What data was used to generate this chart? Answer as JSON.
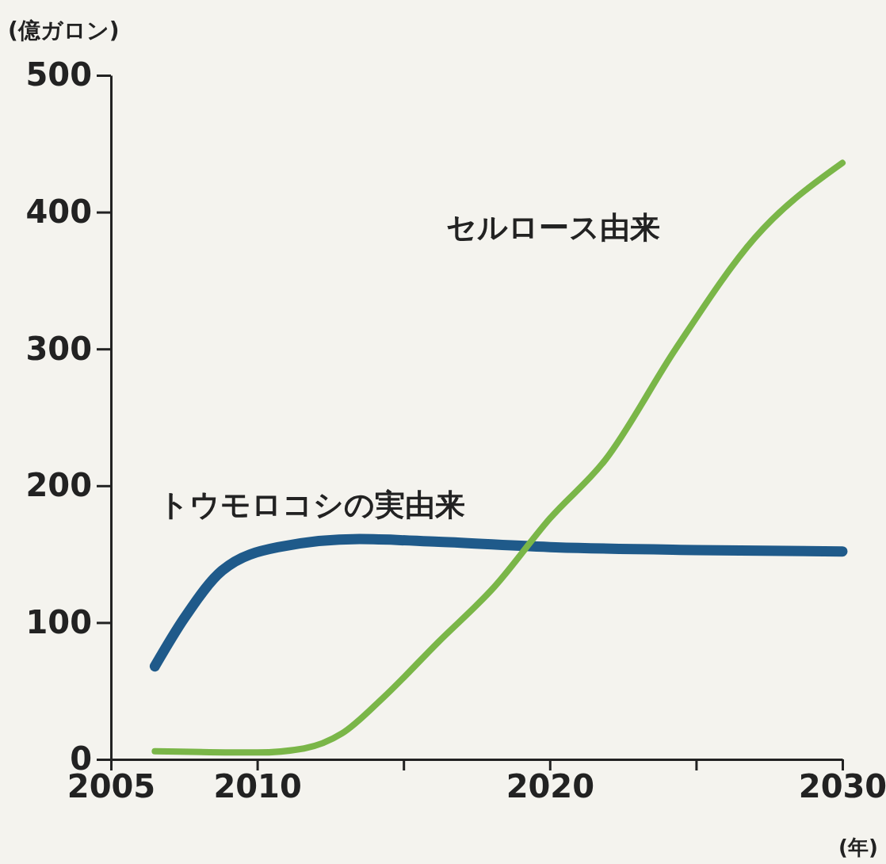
{
  "chart_data": {
    "type": "line",
    "ylabel": "(億ガロン)",
    "xlabel": "(年)",
    "xlim": [
      2005,
      2030
    ],
    "ylim": [
      0,
      500
    ],
    "xticks": [
      2005,
      2010,
      {
        "value": 2015,
        "label": null
      },
      2020,
      {
        "value": 2025,
        "label": null
      },
      2030
    ],
    "yticks": [
      0,
      100,
      200,
      300,
      400,
      500
    ],
    "marker": "none",
    "line_style": "solid",
    "series": [
      {
        "name": "トウモロコシの実由来",
        "color": "#1f5a8a",
        "x": [
          2006.5,
          2007.5,
          2008.8,
          2010.7,
          2013.5,
          2016.2,
          2020.2,
          2025,
          2030
        ],
        "values": [
          68,
          103,
          138,
          155,
          161,
          159,
          155,
          153,
          152
        ]
      },
      {
        "name": "セルロース由来",
        "color": "#7ab648",
        "x": [
          2006.5,
          2010,
          2011.6,
          2012.9,
          2014.3,
          2016.2,
          2018.1,
          2020,
          2021.9,
          2024.3,
          2027,
          2030
        ],
        "values": [
          6,
          5,
          8,
          19,
          45,
          86,
          126,
          176,
          219,
          300,
          381,
          436
        ]
      }
    ]
  }
}
